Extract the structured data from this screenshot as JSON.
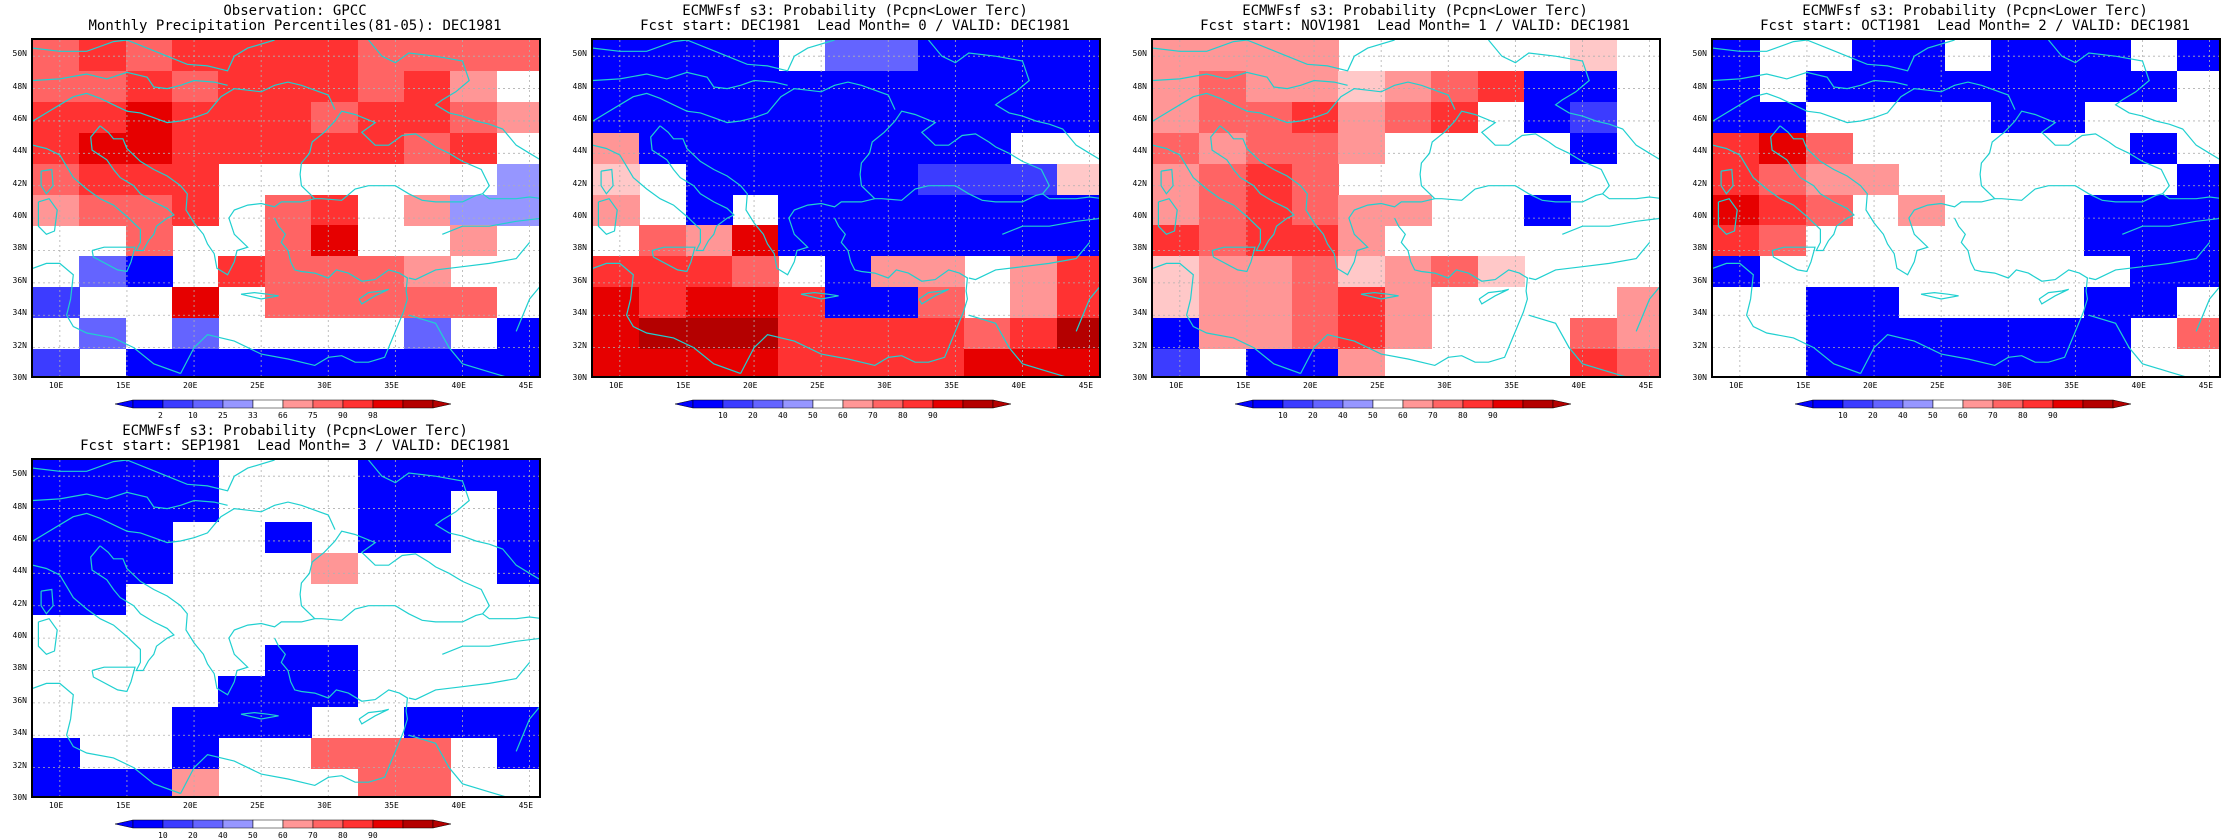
{
  "colors": {
    "blue_scale": [
      "#0000ff",
      "#3c3cff",
      "#6464ff",
      "#9696ff",
      "#c8c8ff"
    ],
    "red_scale": [
      "#ffc8c8",
      "#ff9696",
      "#ff6464",
      "#ff3232",
      "#e60000",
      "#b40000"
    ],
    "coast": "#20d0d0",
    "grid": "#b0b0b0"
  },
  "axes": {
    "lat_labels": [
      "50N",
      "48N",
      "46N",
      "44N",
      "42N",
      "40N",
      "38N",
      "36N",
      "34N",
      "32N",
      "30N"
    ],
    "lon_labels": [
      "10E",
      "15E",
      "20E",
      "25E",
      "30E",
      "35E",
      "40E",
      "45E"
    ],
    "lon_range": [
      8,
      46
    ],
    "lat_range": [
      30,
      51
    ]
  },
  "panels": [
    {
      "title_line1": "Observation: GPCC",
      "title_line2": "Monthly Precipitation Percentiles(81-05): DEC1981",
      "colorbar_labels": [
        "2",
        "10",
        "25",
        "33",
        "66",
        "75",
        "90",
        "98"
      ],
      "grid": [
        "r3 r4 r3 r4 r4 r4 r4 r3 r3 r3 r3",
        "r3 r3 r4 r3 r4 r4 r4 r3 r4 r2 w",
        "r4 r4 r5 r4 r4 r4 r3 r4 r4 r3 r2",
        "r4 r5 r5 r4 r4 r4 r4 r4 r3 r4 w",
        "r3 r4 r4 r4 w w w w w w b4",
        "r2 r3 r3 r4 w r3 r4 w r2 b4 b4",
        "w w r3 w w r3 r5 w w r2 w",
        "w b3 b1 w r4 r3 r3 r3 r2 w w",
        "b2 w w r5 w r3 r3 r3 r3 r3 w",
        "w b3 w b3 w w w w b3 w b1",
        "b2 w b1 b1 b1 b1 b1 b1 b1 b1 b1"
      ]
    },
    {
      "title_line1": "ECMWFsf s3: Probability (Pcpn<Lower Terc)",
      "title_line2": "Fcst start: DEC1981  Lead Month= 0 / VALID: DEC1981",
      "colorbar_labels": [
        "10",
        "20",
        "40",
        "50",
        "60",
        "70",
        "80",
        "90"
      ],
      "grid": [
        "b1 b1 b1 b1 w b3 b3 b1 b1 b1 b1",
        "b1 b1 b1 b1 b1 b1 b1 b1 b1 b1 b1",
        "b1 b1 b1 b1 b1 b1 b1 b1 b1 b1 b1",
        "r2 b1 b1 b1 b1 b1 b1 b1 b1 w w",
        "r1 w b1 b1 b1 b1 b1 b2 b2 b2 r1",
        "r2 w b1 w b1 b1 b1 b1 b1 b1 b1",
        "w r3 r2 r5 b1 b1 b1 b1 b1 b1 b1",
        "r4 r4 r4 r3 w b1 r2 r2 w r2 r4",
        "r5 r4 r5 r5 r4 b1 b1 r3 w r2 r4",
        "r5 r6 r6 r6 r4 r4 r4 r4 r3 r4 r6",
        "r5 r5 r5 r5 r4 r4 r4 r4 r5 r5 r5"
      ]
    },
    {
      "title_line1": "ECMWFsf s3: Probability (Pcpn<Lower Terc)",
      "title_line2": "Fcst start: NOV1981  Lead Month= 1 / VALID: DEC1981",
      "colorbar_labels": [
        "10",
        "20",
        "40",
        "50",
        "60",
        "70",
        "80",
        "90"
      ],
      "grid": [
        "r2 r2 r2 r2 w w w w w r1 w",
        "r2 r3 r2 r2 r1 r2 r3 r4 b1 b1 w",
        "r2 r3 r3 r4 r2 r3 r4 w b1 b2 w",
        "r3 r2 r3 r3 r2 w w w w b1 w",
        "r2 r3 r4 r3 w w w w w w w",
        "r2 r3 r4 r3 r2 r2 w w b1 w w",
        "r4 r3 r4 r4 r2 w w w w w w",
        "r1 r2 r2 r3 r1 r2 r3 r1 w w w",
        "r1 r2 r2 r3 r4 r2 w w w w r2",
        "b1 r2 r2 r3 r4 r2 w w w r3 r2",
        "b2 w b1 b1 r2 w w w w r4 r3"
      ]
    },
    {
      "title_line1": "ECMWFsf s3: Probability (Pcpn<Lower Terc)",
      "title_line2": "Fcst start: OCT1981  Lead Month= 2 / VALID: DEC1981",
      "colorbar_labels": [
        "10",
        "20",
        "40",
        "50",
        "60",
        "70",
        "80",
        "90"
      ],
      "grid": [
        "b1 w w b1 b1 w b1 b1 b1 w b1",
        "b1 w b1 b1 b1 b1 b1 b1 b1 b1 w",
        "b1 b1 w w w w b1 b1 w w w",
        "r4 r5 r3 w w w w w w b1 w",
        "r4 r3 r2 r2 w w w w w w b1",
        "r5 r4 r3 w r2 w w w b1 b1 b1",
        "r4 r3 w w w w w w b1 b1 b1",
        "b1 w w w w w w w w b1 b1",
        "w w b1 b1 w w w w b1 b1 w",
        "w w b1 b1 b1 b1 b1 b1 b1 w r3",
        "w w b1 b1 b1 b1 b1 b1 b1 w w"
      ]
    },
    {
      "title_line1": "ECMWFsf s3: Probability (Pcpn<Lower Terc)",
      "title_line2": "Fcst start: SEP1981  Lead Month= 3 / VALID: DEC1981",
      "colorbar_labels": [
        "10",
        "20",
        "40",
        "50",
        "60",
        "70",
        "80",
        "90"
      ],
      "grid": [
        "b1 b1 b1 b1 w w w b1 b1 b1 b1",
        "b1 b1 b1 b1 w w w b1 b1 w b1",
        "b1 b1 b1 w w b1 w b1 b1 w b1",
        "b1 b1 b1 w w w r2 w w w b1",
        "b1 b1 w w w w w w w w w",
        "w w w w w w w w w w w",
        "w w w w w b1 b1 w w w w",
        "w w w w b1 b1 b1 w w w w",
        "w w w b1 b1 b1 w w b1 b1 b1",
        "b1 w w b1 w w r3 r3 r3 w b1",
        "b1 b1 b1 r2 w w w r3 r3 w w"
      ]
    }
  ]
}
